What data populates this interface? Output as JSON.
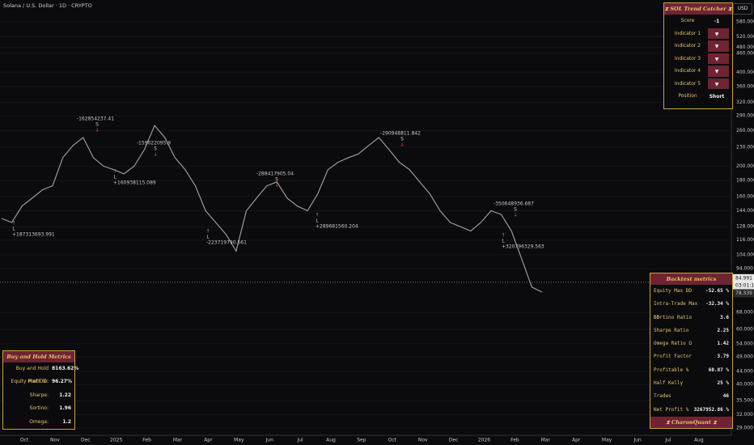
{
  "header": {
    "symbol": "Solana / U.S. Dollar · 1D · CRYPTO",
    "currency": "USD"
  },
  "chart": {
    "type": "line",
    "log_scale": true,
    "color": "#9a9a9a",
    "price": [
      136,
      132,
      149,
      158,
      168,
      173,
      213,
      233,
      247,
      213,
      200,
      195,
      189,
      200,
      226,
      270,
      247,
      213,
      195,
      173,
      144,
      132,
      121,
      107,
      144,
      158,
      173,
      178,
      158,
      149,
      144,
      163,
      195,
      206,
      213,
      219,
      233,
      247,
      226,
      206,
      195,
      178,
      163,
      144,
      132,
      128,
      124,
      132,
      144,
      140,
      124,
      101,
      82,
      79
    ],
    "ylim": [
      29,
      580
    ],
    "yticks": [
      {
        "value": 580,
        "label": "580.000"
      },
      {
        "value": 520,
        "label": "520.000"
      },
      {
        "value": 480,
        "label": "480.000"
      },
      {
        "value": 460,
        "label": "460.000"
      },
      {
        "value": 400,
        "label": "400.000"
      },
      {
        "value": 360,
        "label": "360.000"
      },
      {
        "value": 320,
        "label": "320.000"
      },
      {
        "value": 290,
        "label": "290.000"
      },
      {
        "value": 260,
        "label": "260.000"
      },
      {
        "value": 230,
        "label": "230.000"
      },
      {
        "value": 200,
        "label": "200.000"
      },
      {
        "value": 180,
        "label": "180.000"
      },
      {
        "value": 160,
        "label": "160.000"
      },
      {
        "value": 144,
        "label": "144.000"
      },
      {
        "value": 128,
        "label": "128.000"
      },
      {
        "value": 116,
        "label": "116.000"
      },
      {
        "value": 104,
        "label": "104.000"
      },
      {
        "value": 94,
        "label": "94.000"
      },
      {
        "value": 68,
        "label": "68.000"
      },
      {
        "value": 60,
        "label": "60.000"
      },
      {
        "value": 54,
        "label": "54.000"
      },
      {
        "value": 49,
        "label": "49.000"
      },
      {
        "value": 44,
        "label": "44.000"
      },
      {
        "value": 40,
        "label": "40.000"
      },
      {
        "value": 35.5,
        "label": "35.500"
      },
      {
        "value": 32,
        "label": "32.000"
      },
      {
        "value": 29,
        "label": "29.000"
      }
    ],
    "last_price": {
      "value": 84.991,
      "label": "84.991"
    },
    "countdown": "03:01:11",
    "low_price": {
      "value": 78.339,
      "label": "78.339"
    },
    "time_labels": [
      "Oct",
      "Nov",
      "Dec",
      "2025",
      "Feb",
      "Mar",
      "Apr",
      "May",
      "Jun",
      "Jul",
      "Aug",
      "Sep",
      "Oct",
      "Nov",
      "Dec",
      "2026",
      "Feb",
      "Mar",
      "Apr",
      "May",
      "Jun",
      "Jul",
      "Aug"
    ],
    "trades": [
      {
        "text": "+187313693.991",
        "side": "L"
      },
      {
        "text": "-162854237.41",
        "side": "S"
      },
      {
        "text": "+160938115.089",
        "side": "L"
      },
      {
        "text": "-159022095.9",
        "side": "S"
      },
      {
        "text": "-223719790.561",
        "side": "L"
      },
      {
        "text": "-288417905.04",
        "side": "S"
      },
      {
        "text": "+289681560.204",
        "side": "L"
      },
      {
        "text": "-290948811.842",
        "side": "S"
      },
      {
        "text": "+320796329.563",
        "side": "L"
      },
      {
        "text": "-350648936.687",
        "side": "S"
      }
    ]
  },
  "trend_catcher": {
    "title": "⧗ SOL Trend Catcher ⧗",
    "rows": [
      [
        "Score",
        "-1"
      ],
      [
        "Indicator 1",
        "▼"
      ],
      [
        "Indicator 2",
        "▼"
      ],
      [
        "Indicator 3",
        "▼"
      ],
      [
        "Indicator 4",
        "▼"
      ],
      [
        "Indicator 5",
        "▼"
      ],
      [
        "Position",
        "Short"
      ]
    ]
  },
  "backtest": {
    "title": "Backtest metrics",
    "rows": [
      [
        "Equity Max DD",
        "-52.65 %"
      ],
      [
        "Intra-Trade Max DD",
        "-32.34 %"
      ],
      [
        "Sortino Ratio",
        "3.6"
      ],
      [
        "Sharpe Ratio",
        "2.25"
      ],
      [
        "Omega Ratio Ω",
        "1.42"
      ],
      [
        "Profit Factor",
        "3.79"
      ],
      [
        "Profitable %",
        "60.87 %"
      ],
      [
        "Half Kelly",
        "25 %"
      ],
      [
        "Trades",
        "46"
      ],
      [
        "Net Profit %",
        "3267952.86 %"
      ]
    ],
    "footer": "⧗ CharonQuant ⧗"
  },
  "buy_hold": {
    "title": "Buy and Hold Metrics",
    "rows": [
      [
        "Buy and Hold Profit %:",
        "8163.62%"
      ],
      [
        "Equity Max DD:",
        "96.27%"
      ],
      [
        "Sharpe:",
        "1.22"
      ],
      [
        "Sortino:",
        "1.96"
      ],
      [
        "Omega:",
        "1.2"
      ]
    ]
  }
}
